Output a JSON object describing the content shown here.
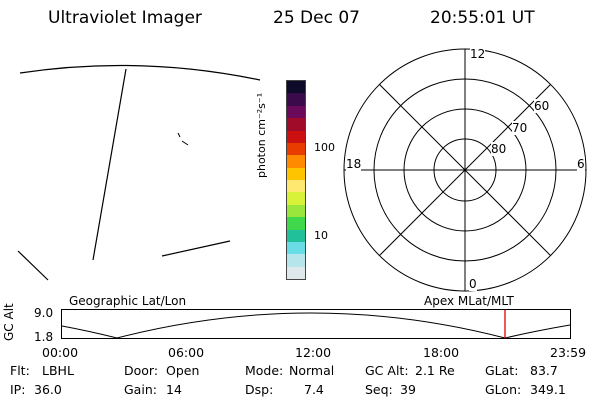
{
  "header": {
    "instrument": "Ultraviolet Imager",
    "date": "25 Dec 07",
    "time": "20:55:01 UT"
  },
  "colorbar": {
    "unit_label": "photon cm⁻²s⁻¹",
    "tick_100": "100",
    "tick_10": "10",
    "colors": [
      "#0e0b2a",
      "#3a0a4a",
      "#6b0a5a",
      "#a00b2a",
      "#cc1010",
      "#e83c00",
      "#ff8a00",
      "#ffc400",
      "#ffe870",
      "#d8f23a",
      "#9ae63c",
      "#3fd84a",
      "#22c09a",
      "#6adce6",
      "#b6e6ec",
      "#dfe9ec"
    ]
  },
  "polar_plot": {
    "mlt_top": "12",
    "mlt_left": "18",
    "mlt_right": "6",
    "mlt_bottom": "0",
    "lat_outer": "60",
    "lat_mid": "70",
    "lat_inner": "80"
  },
  "panels": {
    "left_label": "Geographic Lat/Lon",
    "right_label": "Apex MLat/MLT"
  },
  "altitude_plot": {
    "axis_label": "GC Alt",
    "y_top": "9.0",
    "y_bottom": "1.8",
    "x_ticks": [
      "00:00",
      "06:00",
      "12:00",
      "18:00",
      "23:59"
    ],
    "marker_color": "#e00000"
  },
  "status": {
    "filter_label": "Flt:",
    "filter_value": "LBHL",
    "ip_label": "IP:",
    "ip_value": "36.0",
    "door_label": "Door:",
    "door_value": "Open",
    "gain_label": "Gain:",
    "gain_value": "14",
    "mode_label": "Mode:",
    "mode_value": "Normal",
    "dsp_label": "Dsp:",
    "dsp_value": "7.4",
    "gcalt_label": "GC Alt:",
    "gcalt_value": "2.1 Re",
    "seq_label": "Seq:",
    "seq_value": "39",
    "glat_label": "GLat:",
    "glat_value": "83.7",
    "glon_label": "GLon:",
    "glon_value": "349.1"
  }
}
